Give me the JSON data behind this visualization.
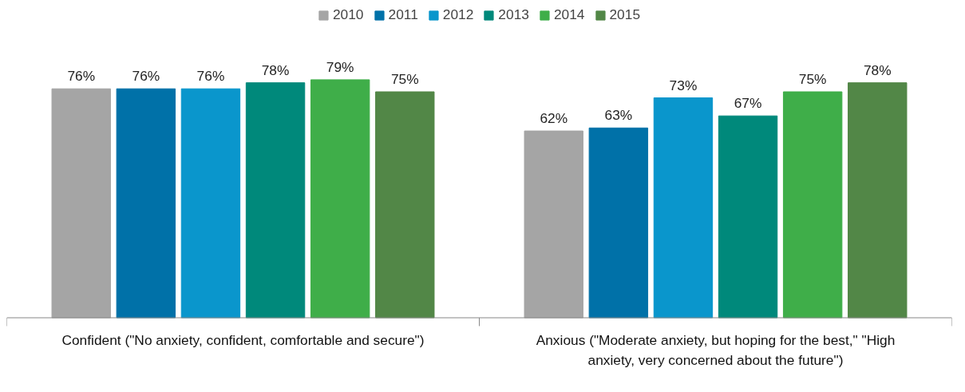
{
  "chart_data": {
    "type": "bar",
    "categories": [
      "Confident (\"No anxiety, confident, comfortable and secure\")",
      "Anxious (\"Moderate anxiety, but hoping for the best,\" \"High anxiety, very concerned about the future\")"
    ],
    "series": [
      {
        "name": "2010",
        "color": "#a5a5a5",
        "values": [
          76,
          62
        ],
        "value_labels": [
          "76%",
          "62%"
        ]
      },
      {
        "name": "2011",
        "color": "#0071a8",
        "values": [
          76,
          63
        ],
        "value_labels": [
          "76%",
          "63%"
        ]
      },
      {
        "name": "2012",
        "color": "#0a96cc",
        "values": [
          76,
          73
        ],
        "value_labels": [
          "76%",
          "73%"
        ]
      },
      {
        "name": "2013",
        "color": "#00897b",
        "values": [
          78,
          67
        ],
        "value_labels": [
          "78%",
          "67%"
        ]
      },
      {
        "name": "2014",
        "color": "#3fae49",
        "values": [
          79,
          75
        ],
        "value_labels": [
          "79%",
          "75%"
        ]
      },
      {
        "name": "2015",
        "color": "#528747",
        "values": [
          75,
          78
        ],
        "value_labels": [
          "75%",
          "78%"
        ]
      }
    ],
    "legend": "top",
    "tick_labels": "x"
  }
}
